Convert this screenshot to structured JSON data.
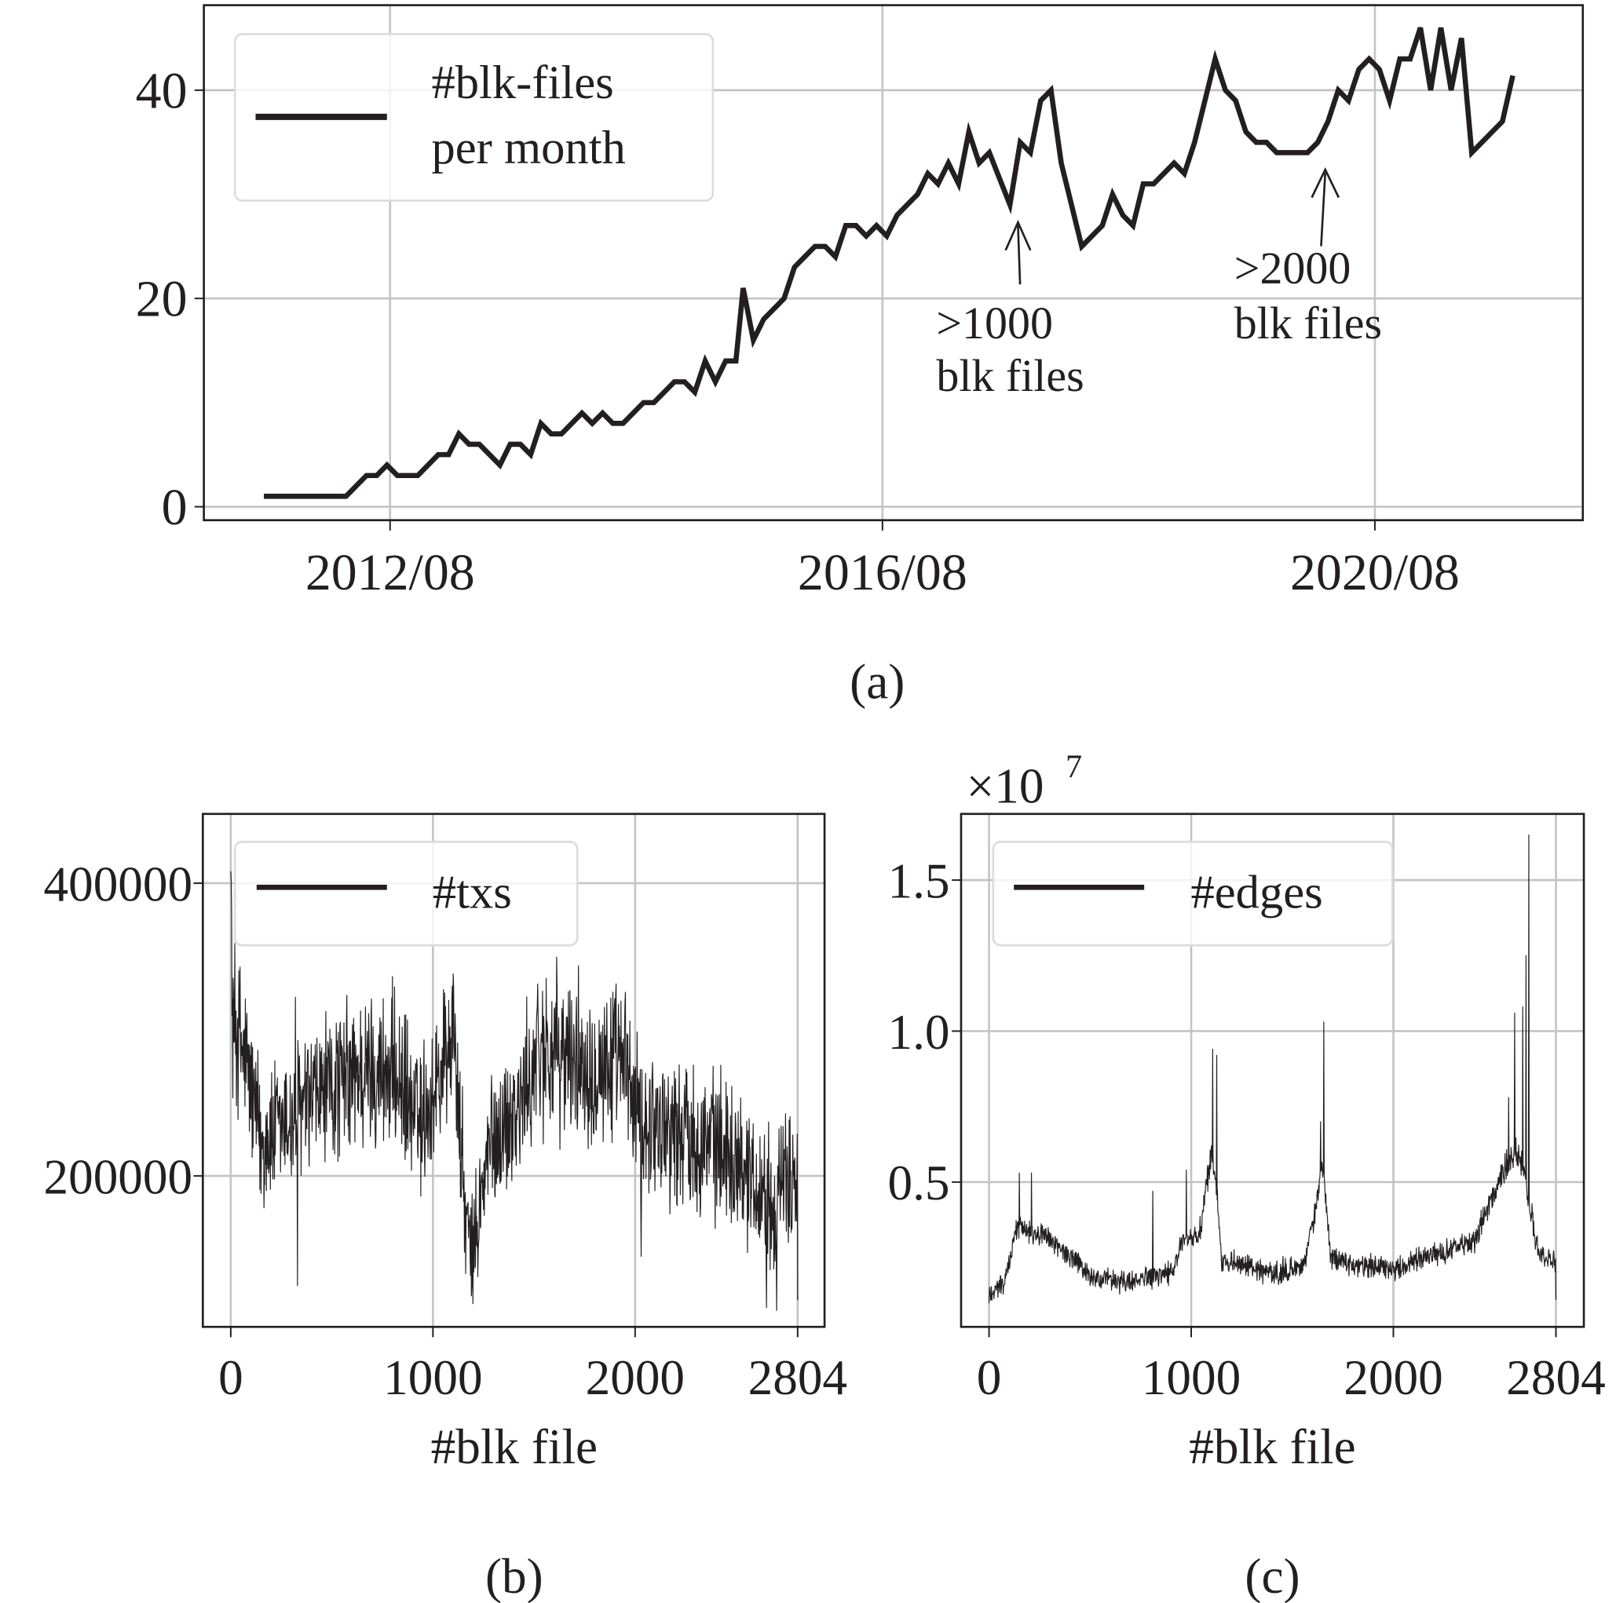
{
  "colors": {
    "line": "#231f20",
    "grid": "#c4c4c4",
    "axes": "#231f20",
    "legend_border": "#dcdcdc",
    "background": "#ffffff"
  },
  "chart_data": [
    {
      "id": "a",
      "type": "line",
      "caption": "(a)",
      "title": "",
      "xlabel": "",
      "ylabel": "",
      "legend": [
        "#blk-files",
        "per month"
      ],
      "legend_position": "upper left",
      "grid": true,
      "ylim": [
        -1.3,
        48
      ],
      "yticks": [
        0,
        20,
        40
      ],
      "ytick_labels": [
        "0",
        "20",
        "40"
      ],
      "xticks": [
        "2012/08",
        "2016/08",
        "2020/08"
      ],
      "x_start": "2011/08",
      "x_end": "2022/02",
      "x_unit": "month",
      "annotations": [
        {
          "text_lines": [
            ">1000",
            "blk files"
          ],
          "arrow_to": "2017/08",
          "value_at_arrow": 29
        },
        {
          "text_lines": [
            ">2000",
            "blk files"
          ],
          "arrow_to": "2019/11",
          "value_at_arrow": 34
        }
      ],
      "points": [
        [
          0,
          1
        ],
        [
          8,
          1
        ],
        [
          10,
          3
        ],
        [
          11,
          3
        ],
        [
          12,
          4
        ],
        [
          13,
          3
        ],
        [
          15,
          3
        ],
        [
          17,
          5
        ],
        [
          18,
          5
        ],
        [
          19,
          7
        ],
        [
          20,
          6
        ],
        [
          21,
          6
        ],
        [
          23,
          4
        ],
        [
          24,
          6
        ],
        [
          25,
          6
        ],
        [
          26,
          5
        ],
        [
          27,
          8
        ],
        [
          28,
          7
        ],
        [
          29,
          7
        ],
        [
          31,
          9
        ],
        [
          32,
          8
        ],
        [
          33,
          9
        ],
        [
          34,
          8
        ],
        [
          35,
          8
        ],
        [
          37,
          10
        ],
        [
          38,
          10
        ],
        [
          40,
          12
        ],
        [
          41,
          12
        ],
        [
          42,
          11
        ],
        [
          43,
          14
        ],
        [
          44,
          12
        ],
        [
          45,
          14
        ],
        [
          46,
          14
        ],
        [
          46.7,
          21
        ],
        [
          47.7,
          16
        ],
        [
          48.7,
          18
        ],
        [
          50.7,
          20
        ],
        [
          51.7,
          23
        ],
        [
          53.7,
          25
        ],
        [
          54.7,
          25
        ],
        [
          55.7,
          24
        ],
        [
          56.7,
          27
        ],
        [
          57.7,
          27
        ],
        [
          58.7,
          26
        ],
        [
          59.7,
          27
        ],
        [
          60.7,
          26
        ],
        [
          61.7,
          28
        ],
        [
          63.7,
          30
        ],
        [
          64.7,
          32
        ],
        [
          65.7,
          31
        ],
        [
          66.7,
          33
        ],
        [
          67.7,
          31
        ],
        [
          68.7,
          36
        ],
        [
          69.7,
          33
        ],
        [
          70.7,
          34
        ],
        [
          72.7,
          29
        ],
        [
          73.7,
          35
        ],
        [
          74.7,
          34
        ],
        [
          75.7,
          39
        ],
        [
          76.7,
          40
        ],
        [
          77.7,
          33
        ],
        [
          79.7,
          25
        ],
        [
          81.7,
          27
        ],
        [
          82.7,
          30
        ],
        [
          83.7,
          28
        ],
        [
          84.7,
          27
        ],
        [
          85.7,
          31
        ],
        [
          86.7,
          31
        ],
        [
          88.7,
          33
        ],
        [
          89.7,
          32
        ],
        [
          90.7,
          35
        ],
        [
          91.7,
          39
        ],
        [
          92.7,
          43
        ],
        [
          93.7,
          40
        ],
        [
          94.7,
          39
        ],
        [
          95.7,
          36
        ],
        [
          96.7,
          35
        ],
        [
          97.7,
          35
        ],
        [
          98.7,
          34
        ],
        [
          101.7,
          34
        ],
        [
          102.7,
          35
        ],
        [
          103.7,
          37
        ],
        [
          104.7,
          40
        ],
        [
          105.7,
          39
        ],
        [
          106.7,
          42
        ],
        [
          107.7,
          43
        ],
        [
          108.7,
          42
        ],
        [
          109.7,
          39
        ],
        [
          110.7,
          43
        ],
        [
          111.7,
          43
        ],
        [
          112.7,
          46
        ],
        [
          113.7,
          40
        ],
        [
          114.7,
          46
        ],
        [
          115.7,
          40
        ],
        [
          116.7,
          45
        ],
        [
          117.7,
          34
        ],
        [
          120.7,
          37
        ],
        [
          121.7,
          41.4
        ]
      ]
    },
    {
      "id": "b",
      "type": "line",
      "caption": "(b)",
      "title": "",
      "xlabel": "#blk file",
      "ylabel": "",
      "legend": [
        "#txs"
      ],
      "legend_position": "upper left",
      "grid": true,
      "xlim": [
        -140,
        2940
      ],
      "ylim": [
        77000,
        455000
      ],
      "xticks": [
        0,
        1000,
        2000,
        2804
      ],
      "xtick_labels": [
        "0",
        "1000",
        "2000",
        "2804"
      ],
      "yticks": [
        200000,
        400000
      ],
      "ytick_labels": [
        "200000",
        "400000"
      ],
      "trend_anchors": [
        [
          0,
          440000
        ],
        [
          6,
          310000
        ],
        [
          40,
          295000
        ],
        [
          90,
          270000
        ],
        [
          150,
          222000
        ],
        [
          250,
          232000
        ],
        [
          400,
          250000
        ],
        [
          600,
          268000
        ],
        [
          800,
          272000
        ],
        [
          930,
          235000
        ],
        [
          1000,
          255000
        ],
        [
          1100,
          300000
        ],
        [
          1160,
          175000
        ],
        [
          1190,
          140000
        ],
        [
          1280,
          220000
        ],
        [
          1450,
          252000
        ],
        [
          1520,
          285000
        ],
        [
          1650,
          282000
        ],
        [
          1800,
          278000
        ],
        [
          1960,
          272000
        ],
        [
          2010,
          240000
        ],
        [
          2300,
          228000
        ],
        [
          2500,
          215000
        ],
        [
          2620,
          190000
        ],
        [
          2700,
          185000
        ],
        [
          2804,
          205000
        ]
      ],
      "noise_amplitude": 22000,
      "spikes": [
        [
          330,
          125000
        ],
        [
          320,
          322000
        ],
        [
          1100,
          338000
        ],
        [
          1560,
          335000
        ],
        [
          1190,
          118000
        ],
        [
          2700,
          108000
        ],
        [
          2650,
          110000
        ],
        [
          2804,
          115000
        ],
        [
          860,
          310000
        ],
        [
          1860,
          318000
        ],
        [
          2030,
          145000
        ]
      ]
    },
    {
      "id": "c",
      "type": "line",
      "caption": "(c)",
      "title": "",
      "xlabel": "#blk file",
      "ylabel": "",
      "y_multiplier_label": "×10",
      "y_multiplier_exp": "7",
      "legend": [
        "#edges"
      ],
      "legend_position": "upper left",
      "grid": true,
      "xlim": [
        -140,
        2940
      ],
      "ylim": [
        0.05,
        1.72
      ],
      "xticks": [
        0,
        1000,
        2000,
        2804
      ],
      "xtick_labels": [
        "0",
        "1000",
        "2000",
        "2804"
      ],
      "yticks": [
        0.5,
        1.0,
        1.5
      ],
      "ytick_labels": [
        "0.5",
        "1.0",
        "1.5"
      ],
      "trend_anchors": [
        [
          0,
          0.13
        ],
        [
          80,
          0.17
        ],
        [
          140,
          0.36
        ],
        [
          300,
          0.31
        ],
        [
          420,
          0.24
        ],
        [
          520,
          0.18
        ],
        [
          700,
          0.17
        ],
        [
          900,
          0.2
        ],
        [
          960,
          0.3
        ],
        [
          1040,
          0.32
        ],
        [
          1100,
          0.6
        ],
        [
          1130,
          0.45
        ],
        [
          1150,
          0.24
        ],
        [
          1400,
          0.2
        ],
        [
          1550,
          0.22
        ],
        [
          1600,
          0.35
        ],
        [
          1650,
          0.55
        ],
        [
          1690,
          0.25
        ],
        [
          1800,
          0.23
        ],
        [
          2000,
          0.21
        ],
        [
          2200,
          0.26
        ],
        [
          2400,
          0.3
        ],
        [
          2550,
          0.55
        ],
        [
          2620,
          0.6
        ],
        [
          2680,
          0.4
        ],
        [
          2720,
          0.26
        ],
        [
          2804,
          0.23
        ]
      ],
      "noise_amplitude": 0.025,
      "spikes": [
        [
          150,
          0.53
        ],
        [
          210,
          0.53
        ],
        [
          1105,
          0.94
        ],
        [
          1125,
          0.92
        ],
        [
          1655,
          1.03
        ],
        [
          1640,
          0.7
        ],
        [
          2600,
          1.06
        ],
        [
          2655,
          1.25
        ],
        [
          2670,
          1.65
        ],
        [
          2640,
          1.08
        ],
        [
          2570,
          0.78
        ],
        [
          975,
          0.54
        ],
        [
          810,
          0.47
        ],
        [
          0,
          0.1
        ],
        [
          2804,
          0.11
        ]
      ]
    }
  ]
}
